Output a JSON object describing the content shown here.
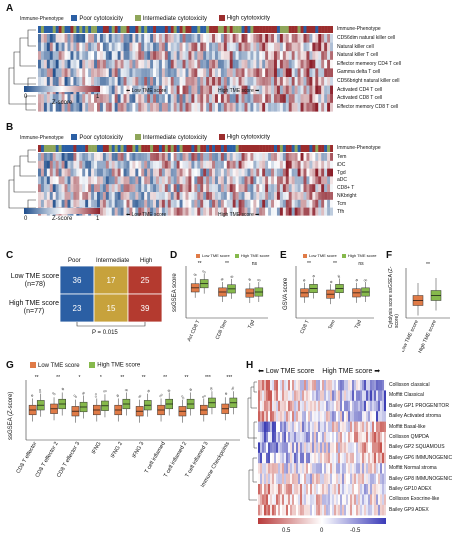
{
  "colors": {
    "poor": "#2b5fa4",
    "intermediate": "#8fa65a",
    "high": "#9b2d2d",
    "low_tme": "#e07b47",
    "high_tme": "#86b94c",
    "heat_low": "#1f4e8c",
    "heat_mid": "#ffffff",
    "heat_high": "#8c1f2a"
  },
  "panel_a": {
    "label": "A",
    "legend_title": "Immune-Phenotype",
    "legend_poor": "Poor cytotoxicity",
    "legend_inter": "Intermediate cytotoxicity",
    "legend_high": "High cytotoxicity",
    "track_label": "Immune-Phenotype",
    "rows": [
      "CD56dim natural killer cell",
      "Natural killer cell",
      "Natural killer T cell",
      "Effector memeory CD4 T cell",
      "Gamma delta T cell",
      "CD56bright natural killer cell",
      "Activated CD4 T cell",
      "Activated CD8 T cell",
      "Effector memory CD8 T cell"
    ],
    "scale_min": "0",
    "scale_max": "1",
    "scale_title": "Z-score",
    "low_tme": "Low TME score",
    "high_tme": "High TME score"
  },
  "panel_b": {
    "label": "B",
    "legend_title": "Immune-Phenotype",
    "legend_poor": "Poor cytotoxicity",
    "legend_inter": "Intermediate cytotoxicity",
    "legend_high": "High cytotoxicity",
    "track_label": "Immune-Phenotype",
    "rows": [
      "Tem",
      "iDC",
      "Tgd",
      "aDC",
      "CD8+ T",
      "NKbright",
      "Tcm",
      "Tfh"
    ],
    "scale_min": "0",
    "scale_max": "1",
    "scale_title": "Z-score",
    "low_tme": "Low TME score",
    "high_tme": "High TME score"
  },
  "panel_c": {
    "label": "C",
    "col_headers": [
      "Poor",
      "Intermediate",
      "High"
    ],
    "row1_label": "Low TME score",
    "row1_n": "(n=78)",
    "row2_label": "High TME score",
    "row2_n": "(n=77)",
    "p_value": "P = 0.015"
  },
  "panel_d": {
    "label": "D",
    "legend_low": "Low TME score",
    "legend_high": "High TME score",
    "ylabel": "ssGSEA score"
  },
  "panel_e": {
    "label": "E",
    "legend_low": "Low TME score",
    "legend_high": "High TME score",
    "ylabel": "GSVA score"
  },
  "panel_f": {
    "label": "F",
    "ylabel": "Cytolysis score ssGSEA (Z-score)"
  },
  "panel_g": {
    "label": "G",
    "legend_low": "Low TME score",
    "legend_high": "High TME score",
    "ylabel": "ssGSEA (Z-score)"
  },
  "panel_h": {
    "label": "H",
    "low_tme": "Low TME score",
    "high_tme": "High TME score",
    "rows": [
      "Collisson classical",
      "Moffitt Classical",
      "Bailey GP1 PROGENITOR",
      "Bailey Activated stroma",
      "Moffitt Basal-like",
      "Collisson QMPDA",
      "Bailey GP2 SQUAMOUS",
      "Bailey GP6 IMMUNOGENIC",
      "Moffitt Normal stroma",
      "Bailey GP8 IMMUNOGENIC",
      "Bailey GP10 ADEX",
      "Collisson Exocrine-like",
      "Bailey GP9 ADEX"
    ],
    "scale_left": "0.5",
    "scale_mid": "0",
    "scale_right": "-0.5"
  },
  "chart_data": [
    {
      "type": "heatmap",
      "title": "",
      "rows": [
        "CD56dim natural killer cell",
        "Natural killer cell",
        "Natural killer T cell",
        "Effector memeory CD4 T cell",
        "Gamma delta T cell",
        "CD56bright natural killer cell",
        "Activated CD4 T cell",
        "Activated CD8 T cell",
        "Effector memory CD8 T cell"
      ],
      "color_range": [
        0,
        1
      ],
      "columns_ordered_by": "TME score (low to high)"
    },
    {
      "type": "heatmap",
      "title": "",
      "rows": [
        "Tem",
        "iDC",
        "Tgd",
        "aDC",
        "CD8+ T",
        "NKbright",
        "Tcm",
        "Tfh"
      ],
      "color_range": [
        0,
        1
      ],
      "columns_ordered_by": "TME score (low to high)"
    },
    {
      "type": "table",
      "columns": [
        "Poor",
        "Intermediate",
        "High"
      ],
      "rows": [
        {
          "name": "Low TME score (n=78)",
          "values": [
            36,
            17,
            25
          ]
        },
        {
          "name": "High TME score (n=77)",
          "values": [
            23,
            15,
            39
          ]
        }
      ],
      "p_value": "P = 0.015"
    },
    {
      "type": "box",
      "ylabel": "ssGSEA score",
      "categories": [
        "Act CD8 T",
        "CD8 Tem",
        "Tgd"
      ],
      "significance": [
        "**",
        "**",
        "ns"
      ],
      "series": [
        {
          "name": "Low TME score",
          "medians": [
            0.25,
            0.05,
            0.0
          ]
        },
        {
          "name": "High TME score",
          "medians": [
            0.45,
            0.2,
            0.05
          ]
        }
      ],
      "ylim": [
        -1.2,
        1.3
      ]
    },
    {
      "type": "box",
      "ylabel": "GSVA score",
      "categories": [
        "CD8 T",
        "Tem",
        "Tgd"
      ],
      "significance": [
        "**",
        "**",
        "ns"
      ],
      "series": [
        {
          "name": "Low TME score",
          "medians": [
            -0.02,
            -0.05,
            -0.02
          ]
        },
        {
          "name": "High TME score",
          "medians": [
            0.08,
            0.08,
            0.0
          ]
        }
      ],
      "ylim": [
        -0.6,
        0.6
      ]
    },
    {
      "type": "box",
      "ylabel": "Cytolysis score ssGSEA (Z-score)",
      "categories": [
        "Low TME score",
        "High TME score"
      ],
      "significance": [
        "**"
      ],
      "medians": [
        0.35,
        0.45
      ],
      "ylim": [
        0,
        1
      ]
    },
    {
      "type": "box",
      "ylabel": "ssGSEA (Z-score)",
      "categories": [
        "CD8 T effector",
        "CD8 T effector 2",
        "CD8 T effector 3",
        "IFNG",
        "IFNG 2",
        "IFNG 3",
        "T cell inflamed",
        "T cell inflamed 2",
        "T cell inflamed 3",
        "Immune Checkpoints"
      ],
      "significance": [
        "**",
        "**",
        "*",
        "*",
        "**",
        "**",
        "**",
        "**",
        "***",
        "***"
      ],
      "series": [
        {
          "name": "Low TME score",
          "medians": [
            0.5,
            0.52,
            0.48,
            0.5,
            0.5,
            0.48,
            0.5,
            0.48,
            0.5,
            0.52
          ]
        },
        {
          "name": "High TME score",
          "medians": [
            0.58,
            0.6,
            0.55,
            0.57,
            0.6,
            0.58,
            0.6,
            0.6,
            0.62,
            0.62
          ]
        }
      ],
      "ylim": [
        0,
        1
      ]
    },
    {
      "type": "heatmap",
      "title": "",
      "rows": [
        "Collisson classical",
        "Moffitt Classical",
        "Bailey GP1 PROGENITOR",
        "Bailey Activated stroma",
        "Moffitt Basal-like",
        "Collisson QMPDA",
        "Bailey GP2 SQUAMOUS",
        "Bailey GP6 IMMUNOGENIC",
        "Moffitt Normal stroma",
        "Bailey GP8 IMMUNOGENIC",
        "Bailey GP10 ADEX",
        "Collisson Exocrine-like",
        "Bailey GP9 ADEX"
      ],
      "color_range": [
        0.5,
        -0.5
      ]
    }
  ]
}
